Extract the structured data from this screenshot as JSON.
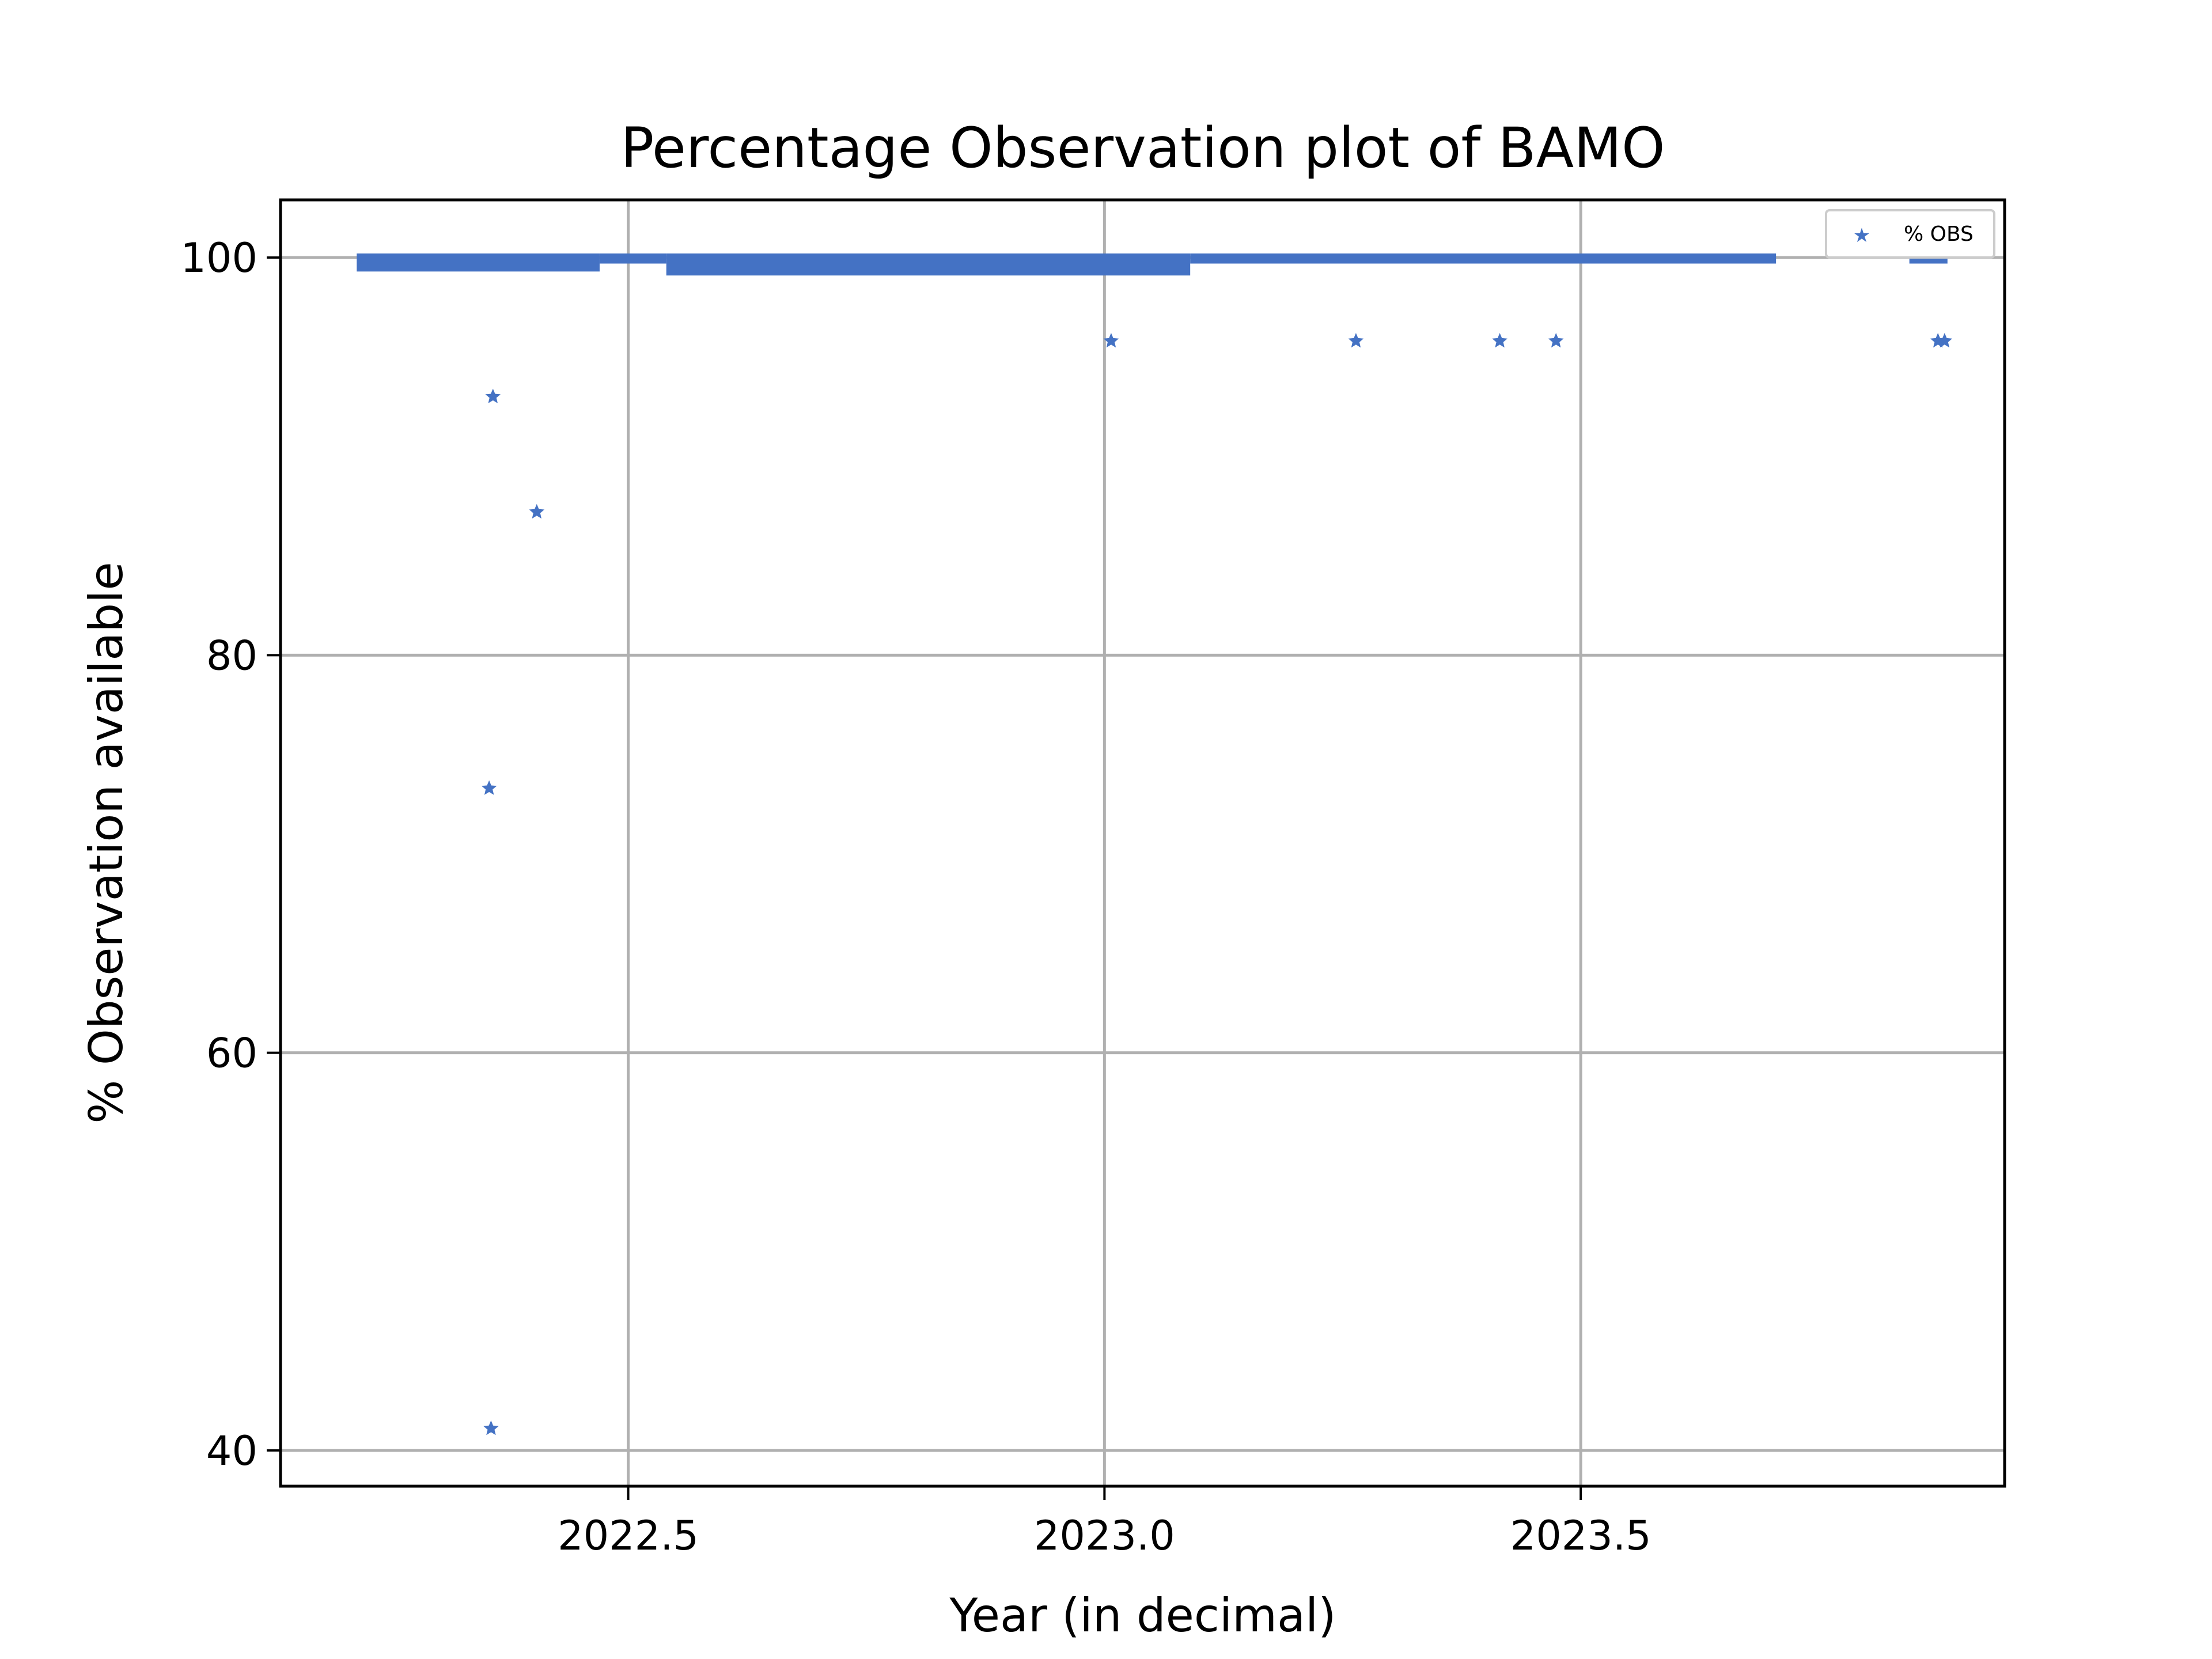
{
  "chart_data": {
    "type": "scatter",
    "title": "Percentage Observation plot of BAMO",
    "xlabel": "Year (in decimal)",
    "ylabel": "% Observation available",
    "xlim": [
      2022.135,
      2023.945
    ],
    "ylim": [
      38.2,
      102.9
    ],
    "xticks": [
      2022.5,
      2023.0,
      2023.5
    ],
    "xtick_labels": [
      "2022.5",
      "2023.0",
      "2023.5"
    ],
    "yticks": [
      40,
      60,
      80,
      100
    ],
    "ytick_labels": [
      "40",
      "60",
      "80",
      "100"
    ],
    "grid": true,
    "legend": {
      "position": "top-right",
      "entries": [
        "% OBS"
      ]
    },
    "marker_color": "#4472c4",
    "series": [
      {
        "name": "% OBS",
        "dense_bands": [
          {
            "x_start": 2022.215,
            "x_end": 2022.47,
            "y_min": 99.5,
            "y_max": 100.0
          },
          {
            "x_start": 2022.47,
            "x_end": 2022.54,
            "y_min": 99.9,
            "y_max": 100.0
          },
          {
            "x_start": 2022.54,
            "x_end": 2023.09,
            "y_min": 99.3,
            "y_max": 100.0
          },
          {
            "x_start": 2023.09,
            "x_end": 2023.705,
            "y_min": 99.9,
            "y_max": 100.0
          },
          {
            "x_start": 2023.845,
            "x_end": 2023.885,
            "y_min": 99.9,
            "y_max": 100.0
          }
        ],
        "points": [
          {
            "x": 2022.358,
            "y": 93.0
          },
          {
            "x": 2022.354,
            "y": 73.3
          },
          {
            "x": 2022.356,
            "y": 41.1
          },
          {
            "x": 2022.404,
            "y": 87.2
          },
          {
            "x": 2023.007,
            "y": 95.8
          },
          {
            "x": 2023.264,
            "y": 95.8
          },
          {
            "x": 2023.415,
            "y": 95.8
          },
          {
            "x": 2023.474,
            "y": 95.8
          },
          {
            "x": 2023.875,
            "y": 95.8
          },
          {
            "x": 2023.882,
            "y": 95.8
          }
        ]
      }
    ]
  }
}
